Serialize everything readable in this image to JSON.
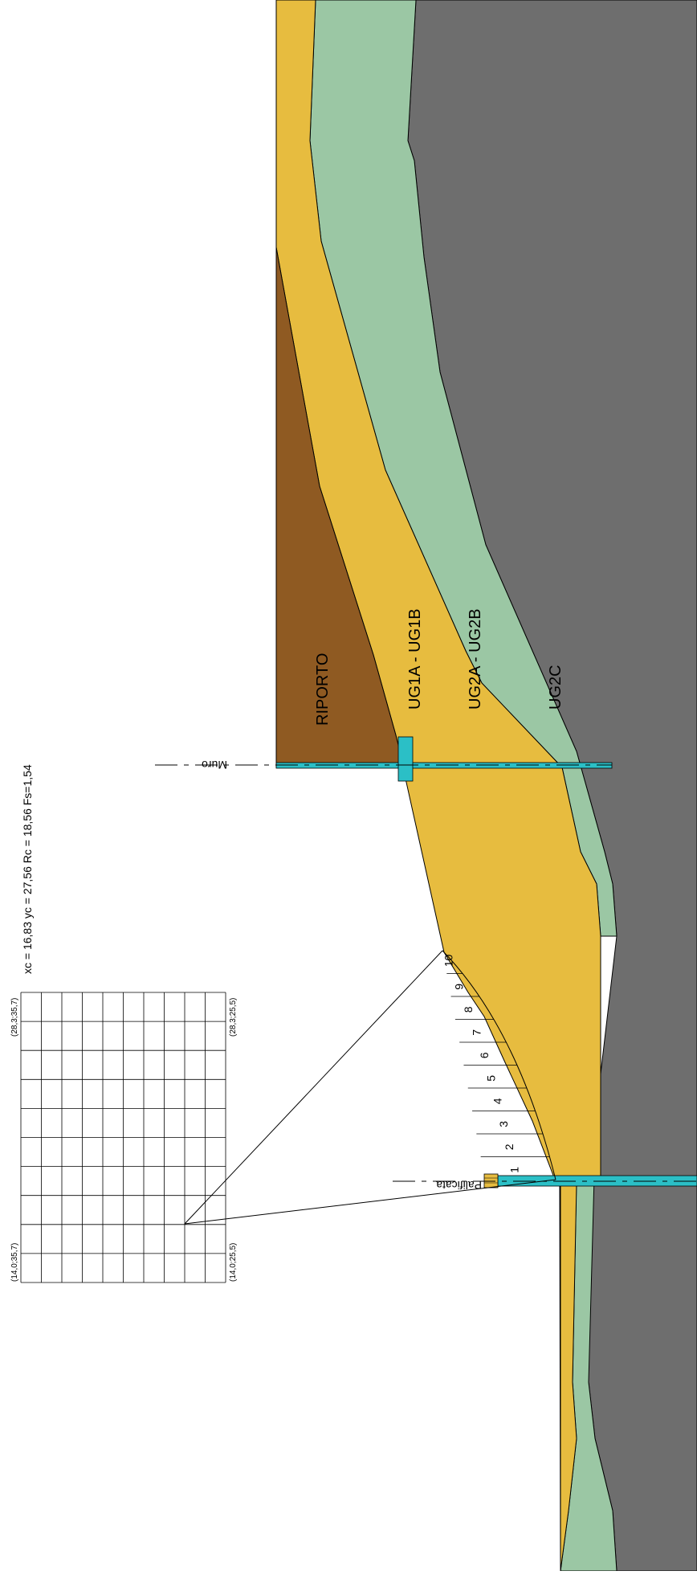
{
  "result_text": "xc = 16,83 yc = 27,56 Rc = 18,56 Fs=1,54",
  "grid_corners": {
    "top_left": "(28,3;35,7)",
    "top_right": "(28,3;25,5)",
    "bottom_left": "(14,0;35,7)",
    "bottom_right": "(14,0;25,5)"
  },
  "layers": [
    {
      "label": "RIPORTO",
      "color": "#8f5a22"
    },
    {
      "label": "UG1A - UG1B",
      "color": "#e7bc3f"
    },
    {
      "label": "UG2A - UG2B",
      "color": "#9bc7a4"
    },
    {
      "label": "UG2C",
      "color": "#6e6e6e"
    }
  ],
  "structures": {
    "wall_label": "Muro",
    "pile_label": "Palificata",
    "structure_color": "#2bbfc6"
  },
  "slices": [
    "1",
    "2",
    "3",
    "4",
    "5",
    "6",
    "7",
    "8",
    "9",
    "10"
  ]
}
